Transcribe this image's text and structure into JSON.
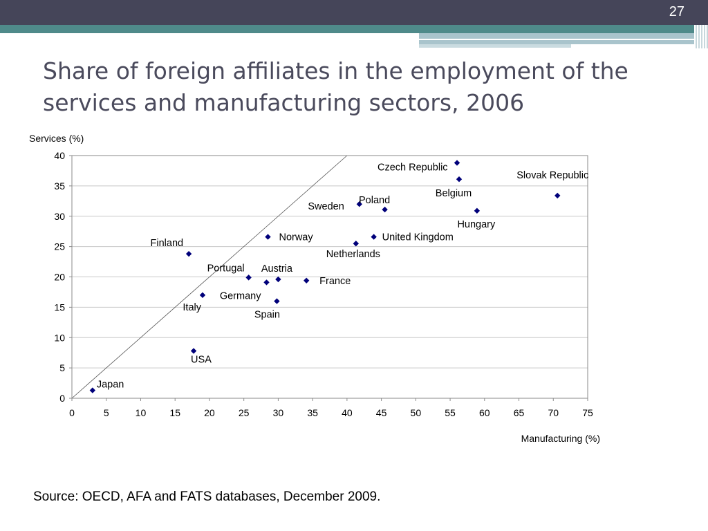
{
  "slide": {
    "number": "27",
    "title": "Share of foreign affiliates in the employment of the services and manufacturing sectors, 2006",
    "source": "Source: OECD, AFA and FATS databases, December 2009.",
    "colors": {
      "header": "#454559",
      "accent": "#4f8a8a",
      "title": "#4a4a5c",
      "marker": "#00007a"
    }
  },
  "chart_data": {
    "type": "scatter",
    "title": "",
    "xlabel": "Manufacturing (%)",
    "ylabel": "Services (%)",
    "xlim": [
      0,
      75
    ],
    "ylim": [
      0,
      40
    ],
    "xticks": [
      0,
      5,
      10,
      15,
      20,
      25,
      30,
      35,
      40,
      45,
      50,
      55,
      60,
      65,
      70,
      75
    ],
    "yticks": [
      0,
      5,
      10,
      15,
      20,
      25,
      30,
      35,
      40
    ],
    "grid": "horizontal",
    "reference_line": "45-degree line (y = x)",
    "marker": "diamond",
    "points": [
      {
        "label": "Japan",
        "x": 3,
        "y": 1.3
      },
      {
        "label": "USA",
        "x": 17.7,
        "y": 7.8
      },
      {
        "label": "Finland",
        "x": 17,
        "y": 23.8
      },
      {
        "label": "Italy",
        "x": 19,
        "y": 17
      },
      {
        "label": "Portugal",
        "x": 25.7,
        "y": 19.9
      },
      {
        "label": "Germany",
        "x": 28.3,
        "y": 19.1
      },
      {
        "label": "Austria",
        "x": 30,
        "y": 19.6
      },
      {
        "label": "Spain",
        "x": 29.8,
        "y": 16
      },
      {
        "label": "Norway",
        "x": 28.5,
        "y": 26.6
      },
      {
        "label": "France",
        "x": 34.1,
        "y": 19.4
      },
      {
        "label": "Netherlands",
        "x": 41.3,
        "y": 25.5
      },
      {
        "label": "Sweden",
        "x": 41.8,
        "y": 32
      },
      {
        "label": "United Kingdom",
        "x": 43.9,
        "y": 26.6
      },
      {
        "label": "Poland",
        "x": 45.5,
        "y": 31.1
      },
      {
        "label": "Czech Republic",
        "x": 56,
        "y": 38.8
      },
      {
        "label": "Belgium",
        "x": 56.3,
        "y": 36.1
      },
      {
        "label": "Hungary",
        "x": 58.9,
        "y": 30.9
      },
      {
        "label": "Slovak Republic",
        "x": 70.6,
        "y": 33.4
      }
    ]
  }
}
